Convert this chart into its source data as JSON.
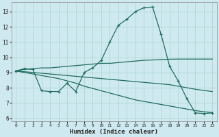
{
  "xlabel": "Humidex (Indice chaleur)",
  "background_color": "#cfe9f0",
  "grid_color": "#a8d5cc",
  "line_color": "#1e6b5e",
  "xlim": [
    -0.5,
    23.5
  ],
  "ylim": [
    5.8,
    13.6
  ],
  "yticks": [
    6,
    7,
    8,
    9,
    10,
    11,
    12,
    13
  ],
  "xticks": [
    0,
    1,
    2,
    3,
    4,
    5,
    6,
    7,
    8,
    9,
    10,
    11,
    12,
    13,
    14,
    15,
    16,
    17,
    18,
    19,
    20,
    21,
    22,
    23
  ],
  "line1_x": [
    0,
    1,
    2,
    3,
    4,
    5,
    6,
    7,
    8,
    9,
    10,
    11,
    12,
    13,
    14,
    15,
    16,
    17,
    18,
    19,
    20,
    21,
    22,
    23
  ],
  "line1_y": [
    9.1,
    9.25,
    9.2,
    7.8,
    7.75,
    7.75,
    8.3,
    7.75,
    9.0,
    9.3,
    9.8,
    11.0,
    12.1,
    12.5,
    13.0,
    13.25,
    13.3,
    11.5,
    9.4,
    8.45,
    7.3,
    6.35,
    6.3,
    6.35
  ],
  "line2_x": [
    0,
    1,
    2,
    3,
    4,
    5,
    6,
    7,
    8,
    9,
    10,
    11,
    12,
    13,
    14,
    15,
    16,
    17,
    18,
    19,
    20,
    21,
    22,
    23
  ],
  "line2_y": [
    9.1,
    9.2,
    9.25,
    9.3,
    9.3,
    9.35,
    9.4,
    9.45,
    9.5,
    9.55,
    9.6,
    9.6,
    9.65,
    9.7,
    9.75,
    9.8,
    9.82,
    9.85,
    9.87,
    9.88,
    9.88,
    9.88,
    9.88,
    9.88
  ],
  "line3_x": [
    0,
    1,
    2,
    3,
    4,
    5,
    6,
    7,
    8,
    9,
    10,
    11,
    12,
    13,
    14,
    15,
    16,
    17,
    18,
    19,
    20,
    21,
    22,
    23
  ],
  "line3_y": [
    9.1,
    9.05,
    9.0,
    8.95,
    8.9,
    8.85,
    8.8,
    8.75,
    8.7,
    8.65,
    8.6,
    8.55,
    8.5,
    8.45,
    8.4,
    8.35,
    8.3,
    8.25,
    8.2,
    8.1,
    8.0,
    7.9,
    7.82,
    7.75
  ],
  "line4_x": [
    0,
    1,
    2,
    3,
    4,
    5,
    6,
    7,
    8,
    9,
    10,
    11,
    12,
    13,
    14,
    15,
    16,
    17,
    18,
    19,
    20,
    21,
    22,
    23
  ],
  "line4_y": [
    9.1,
    9.0,
    8.9,
    8.8,
    8.7,
    8.6,
    8.45,
    8.3,
    8.1,
    7.95,
    7.8,
    7.65,
    7.5,
    7.35,
    7.2,
    7.1,
    7.0,
    6.9,
    6.8,
    6.7,
    6.6,
    6.5,
    6.42,
    6.38
  ]
}
